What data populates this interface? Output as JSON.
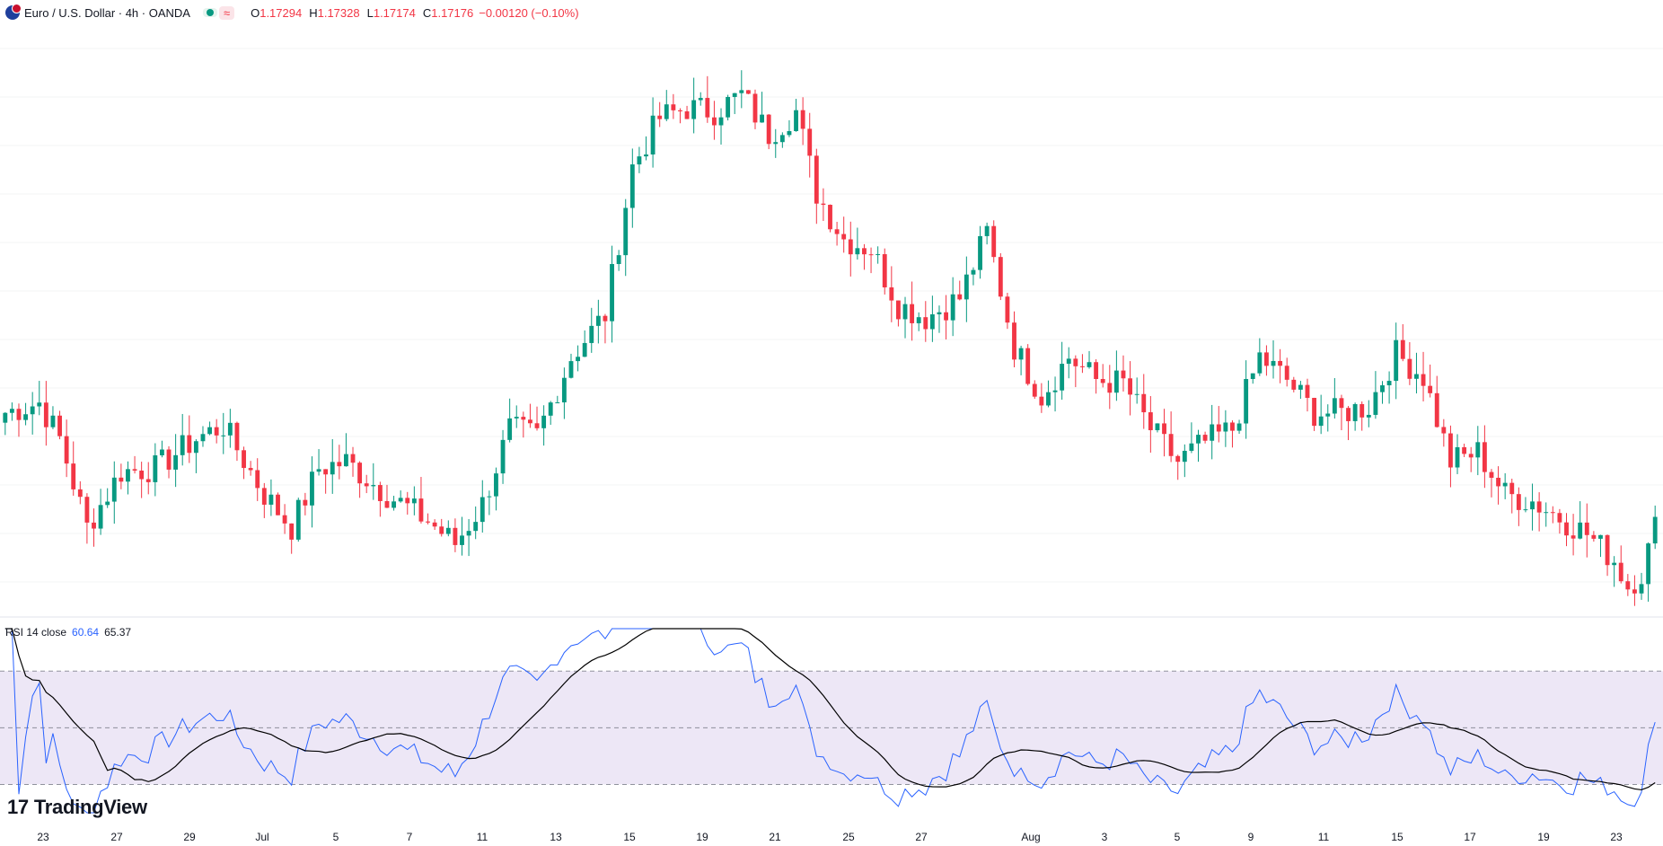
{
  "header": {
    "symbol": "Euro / U.S. Dollar · 4h · OANDA",
    "open_label": "O",
    "open": "1.17294",
    "high_label": "H",
    "high": "1.17328",
    "low_label": "L",
    "low": "1.17174",
    "close_label": "C",
    "close": "1.17176",
    "change": "−0.00120 (−0.10%)",
    "status_glyph": "≈"
  },
  "rsi": {
    "title": "RSI 14 close",
    "value": "60.64",
    "ma_value": "65.37",
    "overbought": 70,
    "middle": 50,
    "oversold": 30
  },
  "brand": {
    "name": "TradingView",
    "mark": "17"
  },
  "colors": {
    "up": "#089981",
    "down": "#f23645",
    "rsi_line": "#2962ff",
    "rsi_ma": "#000000",
    "band": "#ede7f6"
  },
  "chart_data": {
    "type": "candlestick",
    "timeframe": "4h",
    "x_ticks": [
      "23",
      "27",
      "29",
      "Jul",
      "5",
      "7",
      "11",
      "13",
      "15",
      "19",
      "21",
      "25",
      "27",
      "Aug",
      "3",
      "5",
      "9",
      "11",
      "15",
      "17",
      "19",
      "23"
    ],
    "y_range": [
      1.159,
      1.176
    ],
    "price_anchors": [
      [
        0,
        1.1645
      ],
      [
        5,
        1.1648
      ],
      [
        8,
        1.1637
      ],
      [
        12,
        1.161
      ],
      [
        17,
        1.1627
      ],
      [
        22,
        1.1628
      ],
      [
        28,
        1.1637
      ],
      [
        32,
        1.1641
      ],
      [
        38,
        1.162
      ],
      [
        42,
        1.161
      ],
      [
        46,
        1.1628
      ],
      [
        50,
        1.163
      ],
      [
        56,
        1.162
      ],
      [
        62,
        1.1612
      ],
      [
        66,
        1.1605
      ],
      [
        70,
        1.1617
      ],
      [
        74,
        1.164
      ],
      [
        78,
        1.1638
      ],
      [
        83,
        1.1662
      ],
      [
        88,
        1.1675
      ],
      [
        92,
        1.172
      ],
      [
        96,
        1.1735
      ],
      [
        100,
        1.1738
      ],
      [
        104,
        1.1737
      ],
      [
        108,
        1.1742
      ],
      [
        112,
        1.173
      ],
      [
        116,
        1.1737
      ],
      [
        119,
        1.1712
      ],
      [
        123,
        1.1698
      ],
      [
        127,
        1.1695
      ],
      [
        131,
        1.1678
      ],
      [
        135,
        1.1674
      ],
      [
        140,
        1.168
      ],
      [
        144,
        1.17
      ],
      [
        148,
        1.1665
      ],
      [
        152,
        1.165
      ],
      [
        156,
        1.1662
      ],
      [
        160,
        1.1655
      ],
      [
        164,
        1.1654
      ],
      [
        168,
        1.164
      ],
      [
        172,
        1.163
      ],
      [
        176,
        1.1636
      ],
      [
        180,
        1.164
      ],
      [
        184,
        1.1662
      ],
      [
        188,
        1.1655
      ],
      [
        192,
        1.1645
      ],
      [
        196,
        1.1645
      ],
      [
        200,
        1.1647
      ],
      [
        204,
        1.1663
      ],
      [
        208,
        1.1656
      ],
      [
        212,
        1.163
      ],
      [
        216,
        1.1633
      ],
      [
        220,
        1.162
      ],
      [
        224,
        1.1618
      ],
      [
        228,
        1.1613
      ],
      [
        232,
        1.1608
      ],
      [
        236,
        1.16
      ],
      [
        238,
        1.1592
      ],
      [
        240,
        1.1596
      ],
      [
        242,
        1.161
      ]
    ]
  }
}
